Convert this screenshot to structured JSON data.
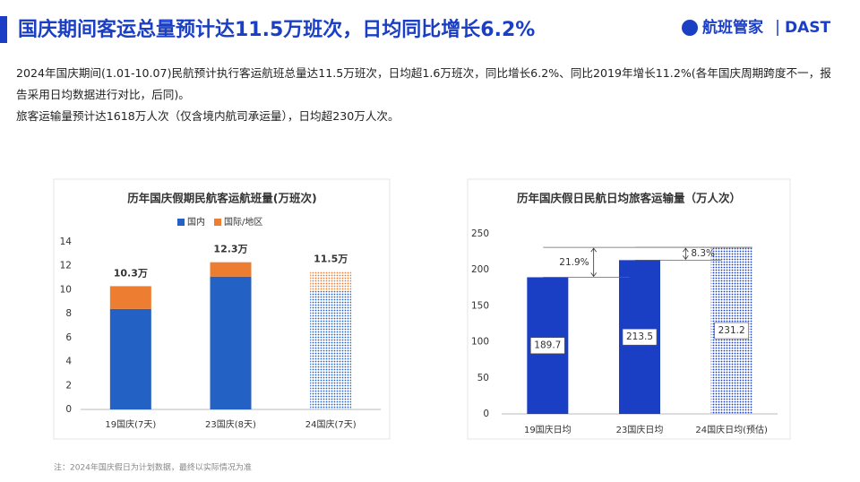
{
  "header": {
    "title": "国庆期间客运总量预计达11.5万班次，日均同比增长6.2%"
  },
  "logo": {
    "name": "航班管家",
    "brand": "DAST"
  },
  "body": {
    "paragraphs": [
      "2024年国庆期间(1.01-10.07)民航预计执行客运航班总量达11.5万班次，日均超1.6万班次，同比增长6.2%、同比2019年增长11.2%(各年国庆周期跨度不一，报告采用日均数据进行对比，后同)。",
      "旅客运输量预计达1618万人次（仅含境内航司承运量），日均超230万人次。"
    ]
  },
  "footnote": "注：2024年国庆假日为计划数据，最终以实际情况为准",
  "chart_data": [
    {
      "type": "stacked_bar",
      "title": "历年国庆假期民航客运航班量(万班次)",
      "categories": [
        "19国庆(7天)",
        "23国庆(8天)",
        "24国庆(7天)"
      ],
      "series": [
        {
          "name": "国内",
          "color": "#2361c4",
          "values": [
            8.4,
            11.1,
            9.9
          ]
        },
        {
          "name": "国际/地区",
          "color": "#ed7d31",
          "values": [
            1.9,
            1.2,
            1.6
          ]
        }
      ],
      "totals": {
        "values": [
          10.3,
          12.3,
          11.5
        ],
        "value_labels": [
          "10.3万",
          "12.3万",
          "11.5万"
        ]
      },
      "patterned": [
        false,
        false,
        true
      ],
      "ylim": [
        0,
        14
      ],
      "yticks": [
        0,
        2,
        4,
        6,
        8,
        10,
        12,
        14
      ],
      "grid": false,
      "legend": "top"
    },
    {
      "type": "bar",
      "title": "历年国庆假日民航日均旅客运输量（万人次）",
      "categories": [
        "19国庆日均",
        "23国庆日均",
        "24国庆日均(预估)"
      ],
      "values": [
        189.7,
        213.5,
        231.2
      ],
      "color": "#1a3fc4",
      "patterned": [
        false,
        false,
        true
      ],
      "annotations": [
        {
          "label": "21.9%",
          "between": [
            0,
            2
          ],
          "side": "left"
        },
        {
          "label": "8.3%",
          "between": [
            1,
            2
          ],
          "side": "right"
        }
      ],
      "ylim": [
        0,
        250
      ],
      "yticks": [
        0,
        50,
        100,
        150,
        200,
        250
      ],
      "grid": false
    }
  ]
}
